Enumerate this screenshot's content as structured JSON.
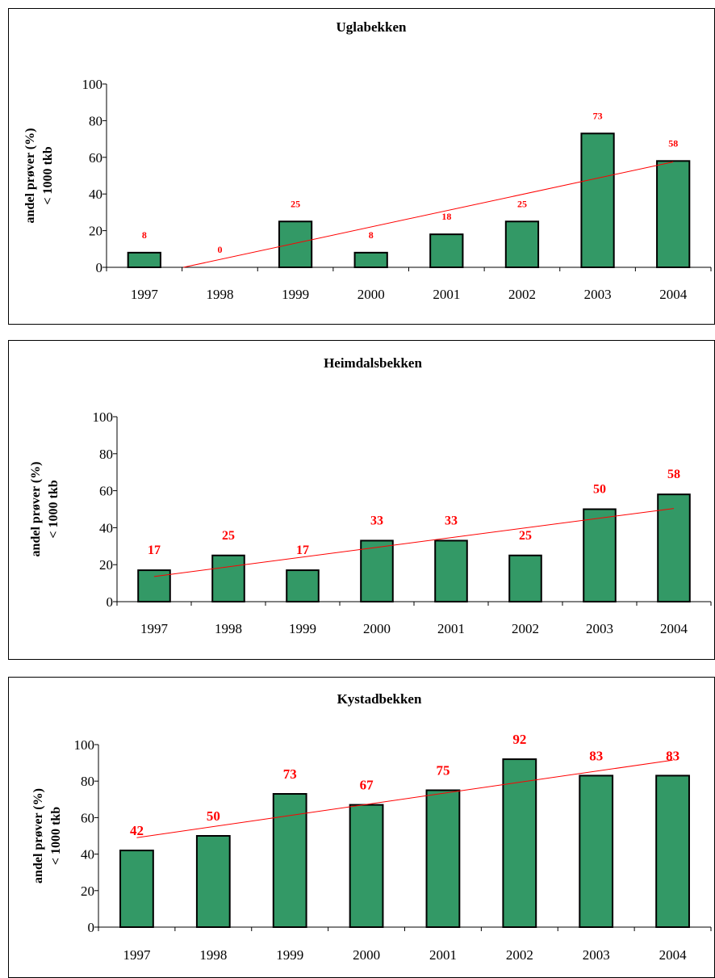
{
  "chart_data": [
    {
      "type": "bar",
      "title": "Uglabekken",
      "ylabel_line1": "andel prøver (%)",
      "ylabel_line2": "< 1000 tkb",
      "categories": [
        "1997",
        "1998",
        "1999",
        "2000",
        "2001",
        "2002",
        "2003",
        "2004"
      ],
      "values": [
        8,
        0,
        25,
        8,
        18,
        25,
        73,
        58
      ],
      "data_labels": [
        "8",
        "0",
        "25",
        "8",
        "18",
        "25",
        "73",
        "58"
      ],
      "ylim": [
        0,
        100
      ],
      "yticks": [
        "0",
        "20",
        "40",
        "60",
        "80",
        "100"
      ],
      "trendline": {
        "type": "linear",
        "start": -4.6,
        "end": 57.5
      },
      "grid": false,
      "legend": "none",
      "bar_color": "#339966",
      "trend_color": "#ff0000",
      "label_color": "#ff0000"
    },
    {
      "type": "bar",
      "title": "Heimdalsbekken",
      "ylabel_line1": "andel prøver (%)",
      "ylabel_line2": "< 1000 tkb",
      "categories": [
        "1997",
        "1998",
        "1999",
        "2000",
        "2001",
        "2002",
        "2003",
        "2004"
      ],
      "values": [
        17,
        25,
        17,
        33,
        33,
        25,
        50,
        58
      ],
      "data_labels": [
        "17",
        "25",
        "17",
        "33",
        "33",
        "25",
        "50",
        "58"
      ],
      "ylim": [
        0,
        100
      ],
      "yticks": [
        "0",
        "20",
        "40",
        "60",
        "80",
        "100"
      ],
      "trendline": {
        "type": "linear",
        "start": 13.6,
        "end": 50.4
      },
      "grid": false,
      "legend": "none",
      "bar_color": "#339966",
      "trend_color": "#ff0000",
      "label_color": "#ff0000"
    },
    {
      "type": "bar",
      "title": "Kystadbekken",
      "ylabel_line1": "andel prøver (%)",
      "ylabel_line2": "< 1000 tkb",
      "categories": [
        "1997",
        "1998",
        "1999",
        "2000",
        "2001",
        "2002",
        "2003",
        "2004"
      ],
      "values": [
        42,
        50,
        73,
        67,
        75,
        92,
        83,
        83
      ],
      "data_labels": [
        "42",
        "50",
        "73",
        "67",
        "75",
        "92",
        "83",
        "83"
      ],
      "ylim": [
        0,
        100
      ],
      "yticks": [
        "0",
        "20",
        "40",
        "60",
        "80",
        "100"
      ],
      "trendline": {
        "type": "linear",
        "start": 49,
        "end": 91.5
      },
      "grid": false,
      "legend": "none",
      "bar_color": "#339966",
      "trend_color": "#ff0000",
      "label_color": "#ff0000"
    }
  ]
}
